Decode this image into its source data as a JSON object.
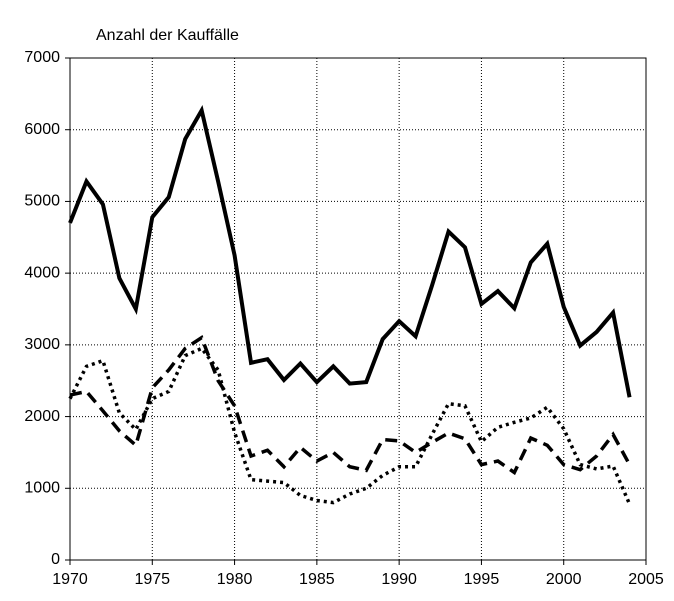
{
  "chart_data": {
    "type": "line",
    "title": "Anzahl der Kauffälle",
    "x": [
      1970,
      1971,
      1972,
      1973,
      1974,
      1975,
      1976,
      1977,
      1978,
      1979,
      1980,
      1981,
      1982,
      1983,
      1984,
      1985,
      1986,
      1987,
      1988,
      1989,
      1990,
      1991,
      1992,
      1993,
      1994,
      1995,
      1996,
      1997,
      1998,
      1999,
      2000,
      2001,
      2002,
      2003,
      2004
    ],
    "series": [
      {
        "color": "#000000",
        "dash": "solid",
        "width": 4,
        "values": [
          4700,
          5280,
          4960,
          3930,
          3500,
          4780,
          5060,
          5870,
          6270,
          5280,
          4250,
          2750,
          2800,
          2510,
          2740,
          2480,
          2700,
          2460,
          2480,
          3080,
          3330,
          3120,
          3830,
          4580,
          4360,
          3570,
          3750,
          3510,
          4150,
          4410,
          3530,
          2990,
          3180,
          3450,
          2270
        ]
      },
      {
        "color": "#000000",
        "dash": "dashed",
        "width": 3.5,
        "values": [
          2300,
          2350,
          2080,
          1800,
          1600,
          2400,
          2650,
          2950,
          3100,
          2500,
          2150,
          1450,
          1530,
          1300,
          1570,
          1380,
          1500,
          1300,
          1250,
          1680,
          1660,
          1500,
          1640,
          1770,
          1690,
          1330,
          1380,
          1220,
          1700,
          1600,
          1330,
          1260,
          1450,
          1750,
          1330
        ]
      },
      {
        "color": "#000000",
        "dash": "dotted",
        "width": 3.5,
        "values": [
          2250,
          2700,
          2780,
          2050,
          1820,
          2250,
          2350,
          2850,
          2950,
          2650,
          1780,
          1120,
          1100,
          1080,
          900,
          830,
          800,
          920,
          1000,
          1180,
          1300,
          1300,
          1750,
          2180,
          2150,
          1650,
          1850,
          1920,
          1980,
          2130,
          1830,
          1330,
          1270,
          1310,
          780
        ]
      }
    ],
    "xlim": [
      1970,
      2005
    ],
    "xticks": [
      1970,
      1975,
      1980,
      1985,
      1990,
      1995,
      2000,
      2005
    ],
    "ylim": [
      0,
      7000
    ],
    "yticks": [
      0,
      1000,
      2000,
      3000,
      4000,
      5000,
      6000,
      7000
    ],
    "grid": true
  }
}
